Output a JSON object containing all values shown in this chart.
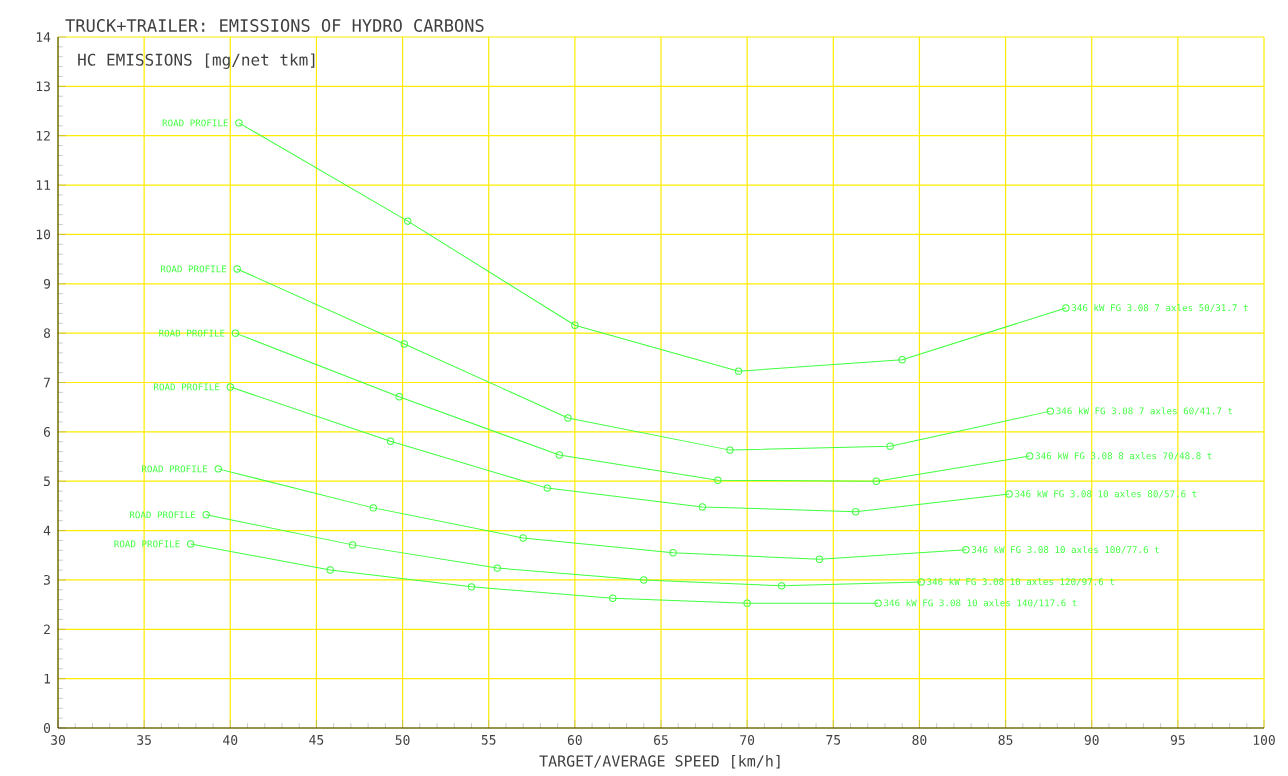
{
  "chart_data": {
    "type": "line",
    "title": "TRUCK+TRAILER: EMISSIONS OF HYDRO CARBONS",
    "xlabel": "TARGET/AVERAGE SPEED [km/h]",
    "ylabel": "HC EMISSIONS [mg/net tkm]",
    "xlim": [
      30,
      100
    ],
    "ylim": [
      0,
      14
    ],
    "xticks": [
      30,
      35,
      40,
      45,
      50,
      55,
      60,
      65,
      70,
      75,
      80,
      85,
      90,
      95,
      100
    ],
    "yticks": [
      0,
      1,
      2,
      3,
      4,
      5,
      6,
      7,
      8,
      9,
      10,
      11,
      12,
      13,
      14
    ],
    "grid": true,
    "marker": "circle",
    "line_style": "solid",
    "series": [
      {
        "name": "346 kW FG 3.08  7 axles 50/31.7 t",
        "color": "#40ff40",
        "x": [
          40.5,
          50.3,
          60.0,
          69.5,
          79.0,
          88.5
        ],
        "values": [
          12.26,
          10.27,
          8.16,
          7.23,
          7.46,
          8.51
        ]
      },
      {
        "name": "346 kW FG 3.08  7 axles 60/41.7 t",
        "color": "#40ff40",
        "x": [
          40.4,
          50.1,
          59.6,
          69.0,
          78.3,
          87.6
        ],
        "values": [
          9.3,
          7.78,
          6.28,
          5.63,
          5.71,
          6.42
        ]
      },
      {
        "name": "346 kW FG 3.08  8 axles 70/48.8 t",
        "color": "#40ff40",
        "x": [
          40.3,
          49.8,
          59.1,
          68.3,
          77.5,
          86.4
        ],
        "values": [
          8.0,
          6.71,
          5.53,
          5.02,
          5.0,
          5.51
        ]
      },
      {
        "name": "346 kW FG 3.08  10 axles 80/57.6 t",
        "color": "#40ff40",
        "x": [
          40.0,
          49.3,
          58.4,
          67.4,
          76.3,
          85.2
        ],
        "values": [
          6.91,
          5.81,
          4.86,
          4.48,
          4.38,
          4.74
        ]
      },
      {
        "name": "346 kW FG 3.08  10 axles 100/77.6 t",
        "color": "#40ff40",
        "x": [
          39.3,
          48.3,
          57.0,
          65.7,
          74.2,
          82.7
        ],
        "values": [
          5.25,
          4.46,
          3.85,
          3.55,
          3.42,
          3.61
        ]
      },
      {
        "name": "346 kW FG 3.08  10 axles 120/97.6 t",
        "color": "#40ff40",
        "x": [
          38.6,
          47.1,
          55.5,
          64.0,
          72.0,
          80.1
        ],
        "values": [
          4.32,
          3.71,
          3.24,
          3.0,
          2.88,
          2.96
        ]
      },
      {
        "name": "346 kW FG 3.08  10 axles 140/117.6 t",
        "color": "#40ff40",
        "x": [
          37.7,
          45.8,
          54.0,
          62.2,
          70.0,
          77.6
        ],
        "values": [
          3.73,
          3.2,
          2.86,
          2.63,
          2.53,
          2.53
        ]
      }
    ],
    "annotations": [
      {
        "text": "ROAD PROFILE",
        "x": 40.5,
        "y": 12.26
      },
      {
        "text": "ROAD PROFILE",
        "x": 40.4,
        "y": 9.3
      },
      {
        "text": "ROAD PROFILE",
        "x": 40.3,
        "y": 8.0
      },
      {
        "text": "ROAD PROFILE",
        "x": 40.0,
        "y": 6.91
      },
      {
        "text": "ROAD PROFILE",
        "x": 39.3,
        "y": 5.25
      },
      {
        "text": "ROAD PROFILE",
        "x": 38.6,
        "y": 4.32
      },
      {
        "text": "ROAD PROFILE",
        "x": 37.7,
        "y": 3.73
      }
    ]
  }
}
